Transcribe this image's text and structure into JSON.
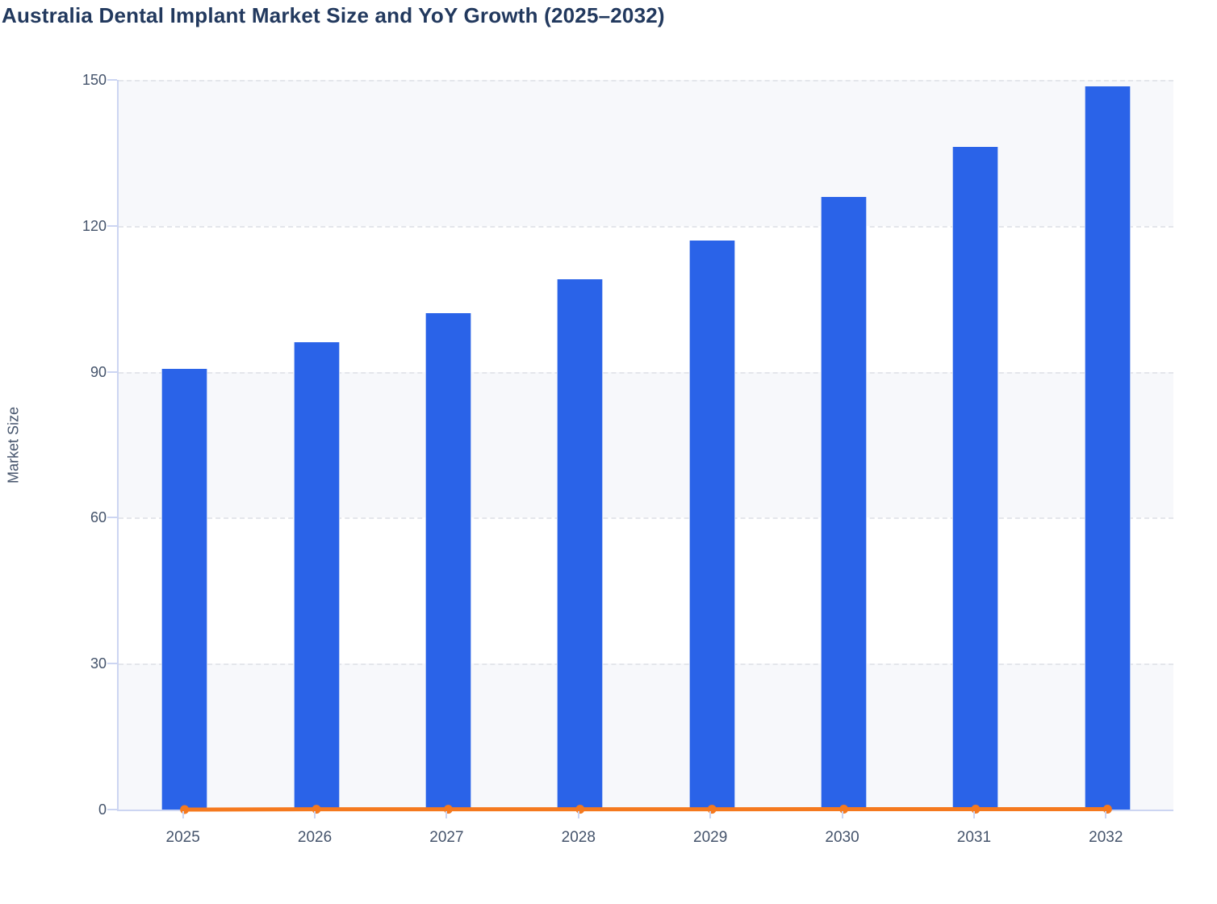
{
  "page_title": "Australia Dental Implant Market Size and YoY Growth (2025–2032)",
  "chart_data": {
    "type": "bar",
    "title": "Australia Dental Implant Market Size and YoY Growth (2025–2032)",
    "xlabel": "",
    "ylabel": "Market Size",
    "categories": [
      "2025",
      "2026",
      "2027",
      "2028",
      "2029",
      "2030",
      "2031",
      "2032"
    ],
    "series": [
      {
        "name": "Market Size",
        "type": "bar",
        "color": "#2a63e8",
        "values": [
          90.6,
          96.1,
          102.0,
          109.1,
          116.9,
          125.9,
          136.3,
          148.6
        ]
      },
      {
        "name": "YoY Growth",
        "type": "line",
        "color": "#f5791e",
        "values": [
          0.0,
          0.061,
          0.061,
          0.07,
          0.071,
          0.077,
          0.083,
          0.09
        ]
      }
    ],
    "ylim": [
      0,
      150
    ],
    "yticks": [
      0,
      30,
      60,
      90,
      120,
      150
    ],
    "grid": "horizontal-dashed",
    "legend_position": "none",
    "plot_background": "alternating horizontal bands"
  },
  "colors": {
    "bar_fill": "#2a63e8",
    "bar_edge": "#b6c9f4",
    "line_stroke": "#f5791e",
    "axis_line": "#ccd5f2",
    "gridline": "#e4e6eb",
    "band_fill": "#f7f8fb",
    "tick_text": "#44536b",
    "title_text": "#22395e"
  }
}
